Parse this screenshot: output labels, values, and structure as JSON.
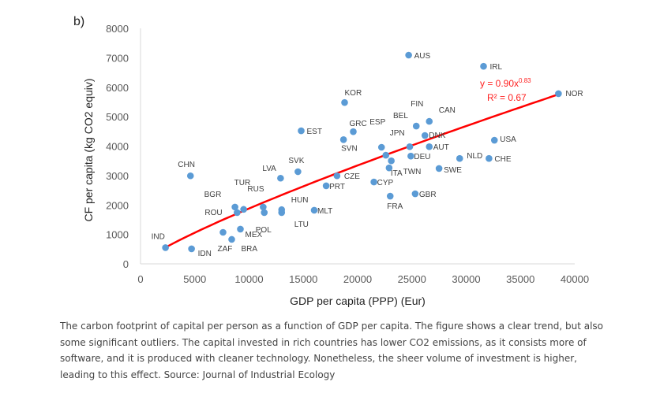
{
  "panel_label": "b)",
  "chart_data": {
    "type": "scatter",
    "xlabel": "GDP per capita (PPP) (Eur)",
    "ylabel": "CF per capita (kg CO2 equiv)",
    "xlim": [
      0,
      40000
    ],
    "ylim": [
      0,
      8000
    ],
    "xticks": [
      0,
      5000,
      10000,
      15000,
      20000,
      25000,
      30000,
      35000,
      40000
    ],
    "yticks": [
      0,
      1000,
      2000,
      3000,
      4000,
      5000,
      6000,
      7000,
      8000
    ],
    "grid": false,
    "point_color": "#5b9bd5",
    "trend_color": "#ff0000",
    "trendline": {
      "type": "power",
      "a": 0.9,
      "b": 0.83,
      "equation": "y = 0.90x",
      "exponent": "0.83",
      "r2": "R² = 0.67",
      "x_range": [
        2300,
        38500
      ]
    },
    "points": [
      {
        "label": "IND",
        "x": 2300,
        "y": 550
      },
      {
        "label": "IDN",
        "x": 4700,
        "y": 510
      },
      {
        "label": "ZAF",
        "x": 7600,
        "y": 1070
      },
      {
        "label": "BRA",
        "x": 8400,
        "y": 830
      },
      {
        "label": "MEX",
        "x": 9200,
        "y": 1180
      },
      {
        "label": "ROU",
        "x": 8900,
        "y": 1740
      },
      {
        "label": "BGR",
        "x": 8700,
        "y": 1930
      },
      {
        "label": "TUR",
        "x": 9500,
        "y": 1850
      },
      {
        "label": "RUS",
        "x": 11300,
        "y": 1930
      },
      {
        "label": "POL",
        "x": 11400,
        "y": 1740
      },
      {
        "label": "HUN",
        "x": 13000,
        "y": 1840
      },
      {
        "label": "LTU",
        "x": 13000,
        "y": 1740
      },
      {
        "label": "MLT",
        "x": 16000,
        "y": 1820
      },
      {
        "label": "CHN",
        "x": 4600,
        "y": 2990
      },
      {
        "label": "LVA",
        "x": 12900,
        "y": 2910
      },
      {
        "label": "SVK",
        "x": 14500,
        "y": 3130
      },
      {
        "label": "EST",
        "x": 14800,
        "y": 4520
      },
      {
        "label": "KOR",
        "x": 18800,
        "y": 5480
      },
      {
        "label": "GRC",
        "x": 19600,
        "y": 4490
      },
      {
        "label": "SVN",
        "x": 18700,
        "y": 4220
      },
      {
        "label": "CZE",
        "x": 18100,
        "y": 2990
      },
      {
        "label": "PRT",
        "x": 17100,
        "y": 2650
      },
      {
        "label": "CYP",
        "x": 21500,
        "y": 2780
      },
      {
        "label": "ESP",
        "x": 22200,
        "y": 3960
      },
      {
        "label": "JPN",
        "x": 22600,
        "y": 3690
      },
      {
        "label": "ITA",
        "x": 22900,
        "y": 3260
      },
      {
        "label": "TWN",
        "x": 23100,
        "y": 3500
      },
      {
        "label": "FRA",
        "x": 23000,
        "y": 2300
      },
      {
        "label": "BEL",
        "x": 24800,
        "y": 3980
      },
      {
        "label": "DEU",
        "x": 24900,
        "y": 3660
      },
      {
        "label": "FIN",
        "x": 25400,
        "y": 4680
      },
      {
        "label": "CAN",
        "x": 26600,
        "y": 4840
      },
      {
        "label": "DNK",
        "x": 26200,
        "y": 4360
      },
      {
        "label": "AUT",
        "x": 26600,
        "y": 3980
      },
      {
        "label": "GBR",
        "x": 25300,
        "y": 2380
      },
      {
        "label": "SWE",
        "x": 27500,
        "y": 3240
      },
      {
        "label": "NLD",
        "x": 29400,
        "y": 3580
      },
      {
        "label": "CHE",
        "x": 32100,
        "y": 3580
      },
      {
        "label": "USA",
        "x": 32600,
        "y": 4200
      },
      {
        "label": "AUS",
        "x": 24700,
        "y": 7090
      },
      {
        "label": "IRL",
        "x": 31600,
        "y": 6710
      },
      {
        "label": "NOR",
        "x": 38500,
        "y": 5780
      }
    ]
  },
  "caption": "The carbon footprint of capital per person as a function of GDP per capita. The figure shows a clear trend, but also some significant outliers. The capital invested in rich countries has lower CO2 emissions, as it consists more of software, and it is produced with cleaner technology. Nonetheless, the sheer volume of investment is higher, leading to this effect. Source: Journal of Industrial Ecology"
}
